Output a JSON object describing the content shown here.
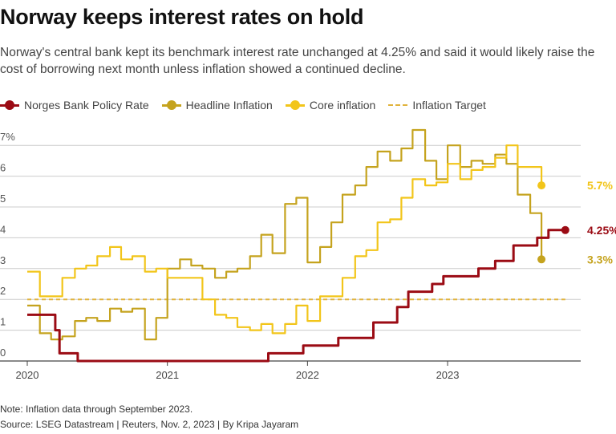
{
  "header": {
    "title": "Norway keeps interest rates on hold",
    "subtitle": "Norway's central bank kept its benchmark interest rate unchanged at 4.25% and said it would likely raise the cost of borrowing next month unless inflation showed a continued decline."
  },
  "footer": {
    "note": "Note: Inflation data through September 2023.",
    "source": "Source: LSEG Datastream | Reuters, Nov. 2, 2023 | By Kripa Jayaram"
  },
  "colors": {
    "policy": "#9b0b14",
    "headline": "#c5a31e",
    "core": "#f2c51a",
    "target": "#e1b33c",
    "grid": "#cccccc",
    "axis": "#444444"
  },
  "chart_data": {
    "type": "line",
    "title": "Norway keeps interest rates on hold",
    "xlabel": "",
    "ylabel": "",
    "xlim": [
      2020.0,
      2023.95
    ],
    "ylim": [
      0,
      7.5
    ],
    "y_ticks": [
      0,
      1,
      2,
      3,
      4,
      5,
      6,
      7
    ],
    "y_tick_labels": [
      "0",
      "1",
      "2",
      "3",
      "4",
      "5",
      "6",
      "7%"
    ],
    "x_ticks": [
      2020,
      2021,
      2022,
      2023
    ],
    "x_tick_labels": [
      "2020",
      "2021",
      "2022",
      "2023"
    ],
    "grid": true,
    "legend_position": "top-left",
    "series": [
      {
        "name": "Norges Bank Policy Rate",
        "key": "policy",
        "step": true,
        "points": [
          [
            2020.0,
            1.5
          ],
          [
            2020.2,
            1.0
          ],
          [
            2020.23,
            0.25
          ],
          [
            2020.36,
            0.0
          ],
          [
            2021.72,
            0.25
          ],
          [
            2021.97,
            0.5
          ],
          [
            2022.22,
            0.75
          ],
          [
            2022.47,
            1.25
          ],
          [
            2022.64,
            1.75
          ],
          [
            2022.72,
            2.25
          ],
          [
            2022.89,
            2.5
          ],
          [
            2022.97,
            2.75
          ],
          [
            2023.22,
            3.0
          ],
          [
            2023.34,
            3.25
          ],
          [
            2023.47,
            3.75
          ],
          [
            2023.64,
            4.0
          ],
          [
            2023.72,
            4.25
          ],
          [
            2023.84,
            4.25
          ]
        ],
        "end_label": "4.25%"
      },
      {
        "name": "Headline Inflation",
        "key": "headline",
        "step": true,
        "points": [
          [
            2020.0,
            1.8
          ],
          [
            2020.09,
            0.9
          ],
          [
            2020.17,
            0.7
          ],
          [
            2020.25,
            0.8
          ],
          [
            2020.34,
            1.3
          ],
          [
            2020.42,
            1.4
          ],
          [
            2020.5,
            1.3
          ],
          [
            2020.59,
            1.7
          ],
          [
            2020.67,
            1.6
          ],
          [
            2020.75,
            1.7
          ],
          [
            2020.84,
            0.7
          ],
          [
            2020.92,
            1.4
          ],
          [
            2021.0,
            3.0
          ],
          [
            2021.09,
            3.3
          ],
          [
            2021.17,
            3.1
          ],
          [
            2021.25,
            3.0
          ],
          [
            2021.34,
            2.7
          ],
          [
            2021.42,
            2.9
          ],
          [
            2021.5,
            3.0
          ],
          [
            2021.59,
            3.4
          ],
          [
            2021.67,
            4.1
          ],
          [
            2021.75,
            3.5
          ],
          [
            2021.84,
            5.1
          ],
          [
            2021.92,
            5.3
          ],
          [
            2022.0,
            3.2
          ],
          [
            2022.09,
            3.7
          ],
          [
            2022.17,
            4.5
          ],
          [
            2022.25,
            5.4
          ],
          [
            2022.34,
            5.7
          ],
          [
            2022.42,
            6.3
          ],
          [
            2022.5,
            6.8
          ],
          [
            2022.59,
            6.5
          ],
          [
            2022.67,
            6.9
          ],
          [
            2022.75,
            7.5
          ],
          [
            2022.84,
            6.5
          ],
          [
            2022.92,
            5.9
          ],
          [
            2023.0,
            7.0
          ],
          [
            2023.09,
            6.3
          ],
          [
            2023.17,
            6.5
          ],
          [
            2023.25,
            6.4
          ],
          [
            2023.34,
            6.7
          ],
          [
            2023.42,
            6.4
          ],
          [
            2023.5,
            5.4
          ],
          [
            2023.59,
            4.8
          ],
          [
            2023.67,
            3.3
          ]
        ],
        "end_label": ""
      },
      {
        "name": "Core inflation",
        "key": "core",
        "step": true,
        "points": [
          [
            2020.0,
            2.9
          ],
          [
            2020.09,
            2.1
          ],
          [
            2020.25,
            2.7
          ],
          [
            2020.34,
            3.0
          ],
          [
            2020.42,
            3.1
          ],
          [
            2020.5,
            3.4
          ],
          [
            2020.59,
            3.7
          ],
          [
            2020.67,
            3.3
          ],
          [
            2020.75,
            3.4
          ],
          [
            2020.84,
            2.9
          ],
          [
            2020.92,
            3.0
          ],
          [
            2021.0,
            2.7
          ],
          [
            2021.09,
            2.7
          ],
          [
            2021.17,
            2.7
          ],
          [
            2021.25,
            2.0
          ],
          [
            2021.34,
            1.5
          ],
          [
            2021.42,
            1.4
          ],
          [
            2021.5,
            1.1
          ],
          [
            2021.59,
            1.0
          ],
          [
            2021.67,
            1.2
          ],
          [
            2021.75,
            0.9
          ],
          [
            2021.84,
            1.2
          ],
          [
            2021.92,
            1.8
          ],
          [
            2022.0,
            1.3
          ],
          [
            2022.09,
            2.1
          ],
          [
            2022.17,
            2.1
          ],
          [
            2022.25,
            2.7
          ],
          [
            2022.34,
            3.4
          ],
          [
            2022.42,
            3.6
          ],
          [
            2022.5,
            4.5
          ],
          [
            2022.59,
            4.6
          ],
          [
            2022.67,
            5.3
          ],
          [
            2022.75,
            5.9
          ],
          [
            2022.84,
            5.7
          ],
          [
            2022.92,
            5.8
          ],
          [
            2023.0,
            6.4
          ],
          [
            2023.09,
            5.9
          ],
          [
            2023.17,
            6.2
          ],
          [
            2023.25,
            6.3
          ],
          [
            2023.34,
            6.6
          ],
          [
            2023.42,
            7.0
          ],
          [
            2023.5,
            6.3
          ],
          [
            2023.59,
            6.3
          ],
          [
            2023.67,
            5.7
          ]
        ],
        "end_label": ""
      },
      {
        "name": "Inflation Target",
        "key": "target",
        "dashed": true,
        "points": [
          [
            2020.0,
            2.0
          ],
          [
            2023.84,
            2.0
          ]
        ],
        "end_label": ""
      }
    ],
    "annotations": [
      {
        "text": "5.7%",
        "key": "core",
        "x": 2023.67,
        "y": 5.7
      },
      {
        "text": "4.25%",
        "key": "policy",
        "x": 2023.84,
        "y": 4.25
      },
      {
        "text": "3.3%",
        "key": "headline",
        "x": 2023.67,
        "y": 3.3
      }
    ]
  }
}
